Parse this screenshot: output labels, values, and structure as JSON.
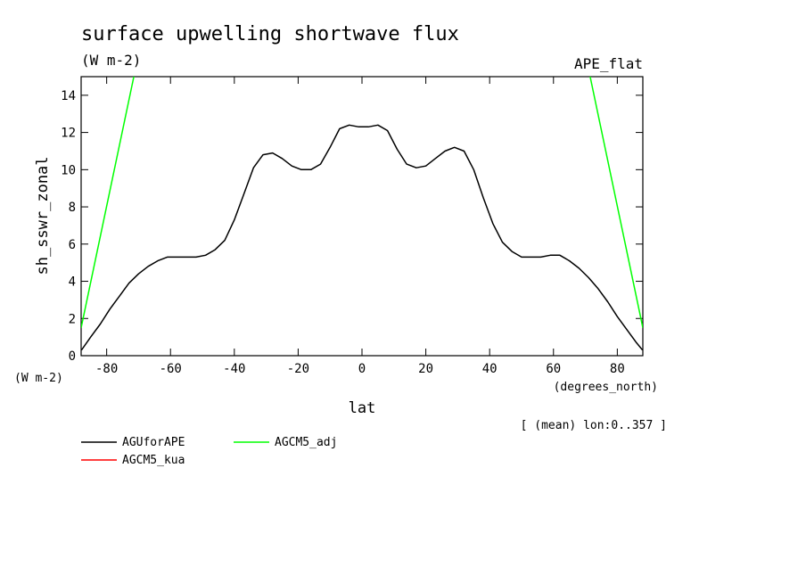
{
  "chart_data": {
    "type": "line",
    "title": "surface upwelling shortwave flux",
    "units": "(W m-2)",
    "experiment": "APE_flat",
    "xlabel": "lat",
    "x_units": "(degrees_north)",
    "ylabel": "sh_sswr_zonal",
    "y_units": "(W m-2)",
    "averaging_note": "[ (mean) lon:0..357 ]",
    "xlim": [
      -88,
      88
    ],
    "ylim": [
      0,
      15
    ],
    "x_ticks": [
      -80,
      -60,
      -40,
      -20,
      0,
      20,
      40,
      60,
      80
    ],
    "x_tick_labels": [
      "-80",
      "-60",
      "-40",
      "-20",
      "0",
      "20",
      "40",
      "60",
      "80"
    ],
    "y_ticks": [
      0,
      2,
      4,
      6,
      8,
      10,
      12,
      14
    ],
    "y_tick_labels": [
      "0",
      "2",
      "4",
      "6",
      "8",
      "10",
      "12",
      "14"
    ],
    "grid": false,
    "legend_position": "bottom",
    "series": [
      {
        "name": "AGUforAPE",
        "color": "#000000",
        "x": [
          -87.9,
          -85,
          -82,
          -79,
          -76,
          -73,
          -70,
          -67,
          -64,
          -61,
          -58,
          -55,
          -52,
          -49,
          -46,
          -43,
          -40,
          -37,
          -34,
          -31,
          -28,
          -25,
          -22,
          -19,
          -16,
          -13,
          -10,
          -7,
          -4,
          -1,
          2,
          5,
          8,
          11,
          14,
          17,
          20,
          23,
          26,
          29,
          32,
          35,
          38,
          41,
          44,
          47,
          50,
          53,
          56,
          59,
          62,
          65,
          68,
          71,
          74,
          77,
          80,
          83,
          86,
          87.9
        ],
        "y": [
          0.3,
          1.0,
          1.7,
          2.5,
          3.2,
          3.9,
          4.4,
          4.8,
          5.1,
          5.3,
          5.3,
          5.3,
          5.3,
          5.4,
          5.7,
          6.2,
          7.3,
          8.7,
          10.1,
          10.8,
          10.9,
          10.6,
          10.2,
          10.0,
          10.0,
          10.3,
          11.2,
          12.2,
          12.4,
          12.3,
          12.3,
          12.4,
          12.1,
          11.1,
          10.3,
          10.1,
          10.2,
          10.6,
          11.0,
          11.2,
          11.0,
          10.0,
          8.5,
          7.1,
          6.1,
          5.6,
          5.3,
          5.3,
          5.3,
          5.4,
          5.4,
          5.1,
          4.7,
          4.2,
          3.6,
          2.9,
          2.1,
          1.4,
          0.7,
          0.3
        ]
      },
      {
        "name": "AGCM5_kua",
        "color": "#ff0000",
        "x": [],
        "y": []
      },
      {
        "name": "AGCM5_adj",
        "color": "#00ff00",
        "segments": [
          {
            "x": [
              -88,
              -71.5
            ],
            "y": [
              1.5,
              15
            ]
          },
          {
            "x": [
              71.5,
              88
            ],
            "y": [
              15,
              1.5
            ]
          }
        ]
      }
    ]
  }
}
